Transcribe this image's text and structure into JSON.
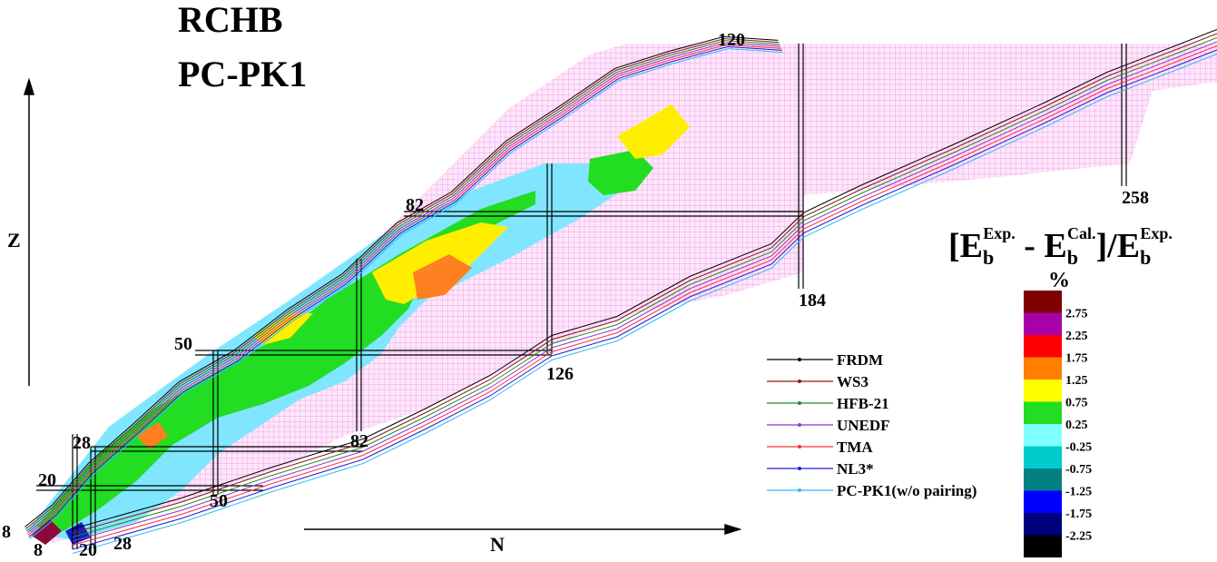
{
  "chart_data": {
    "type": "heatmap",
    "title_lines": [
      "RCHB",
      "PC-PK1"
    ],
    "xlabel": "N",
    "ylabel": "Z",
    "colorbar": {
      "title": "[E_b^Exp. - E_b^Cal.]/E_b^Exp.",
      "title_parts": [
        "[E",
        "b",
        "Exp.",
        " - E",
        "b",
        "Cal.",
        "]/E",
        "b",
        "Exp."
      ],
      "unit": "%",
      "ticks": [
        "2.75",
        "2.25",
        "1.75",
        "1.25",
        "0.75",
        "0.25",
        "-0.25",
        "-0.75",
        "-1.25",
        "-1.75",
        "-2.25"
      ],
      "colors": [
        "#7f0000",
        "#aa00aa",
        "#ff0000",
        "#ff7f00",
        "#ffff00",
        "#22dd22",
        "#7fffff",
        "#00cccc",
        "#008080",
        "#0000ff",
        "#00007f",
        "#000000"
      ]
    },
    "magic_numbers": {
      "Z": [
        8,
        20,
        28,
        50,
        82,
        120
      ],
      "N": [
        8,
        20,
        28,
        50,
        82,
        126,
        184,
        258
      ]
    },
    "legend": [
      {
        "name": "FRDM",
        "color": "#000000"
      },
      {
        "name": "WS3",
        "color": "#8b1a1a"
      },
      {
        "name": "HFB-21",
        "color": "#228b22"
      },
      {
        "name": "UNEDF",
        "color": "#9932cc"
      },
      {
        "name": "TMA",
        "color": "#ff3030"
      },
      {
        "name": "NL3*",
        "color": "#1c1cdc"
      },
      {
        "name": "PC-PK1(w/o pairing)",
        "color": "#33bbee"
      }
    ],
    "region_colors": {
      "bound_nuclei": "#ffd0f5",
      "grid_line": "#e080e0"
    }
  }
}
